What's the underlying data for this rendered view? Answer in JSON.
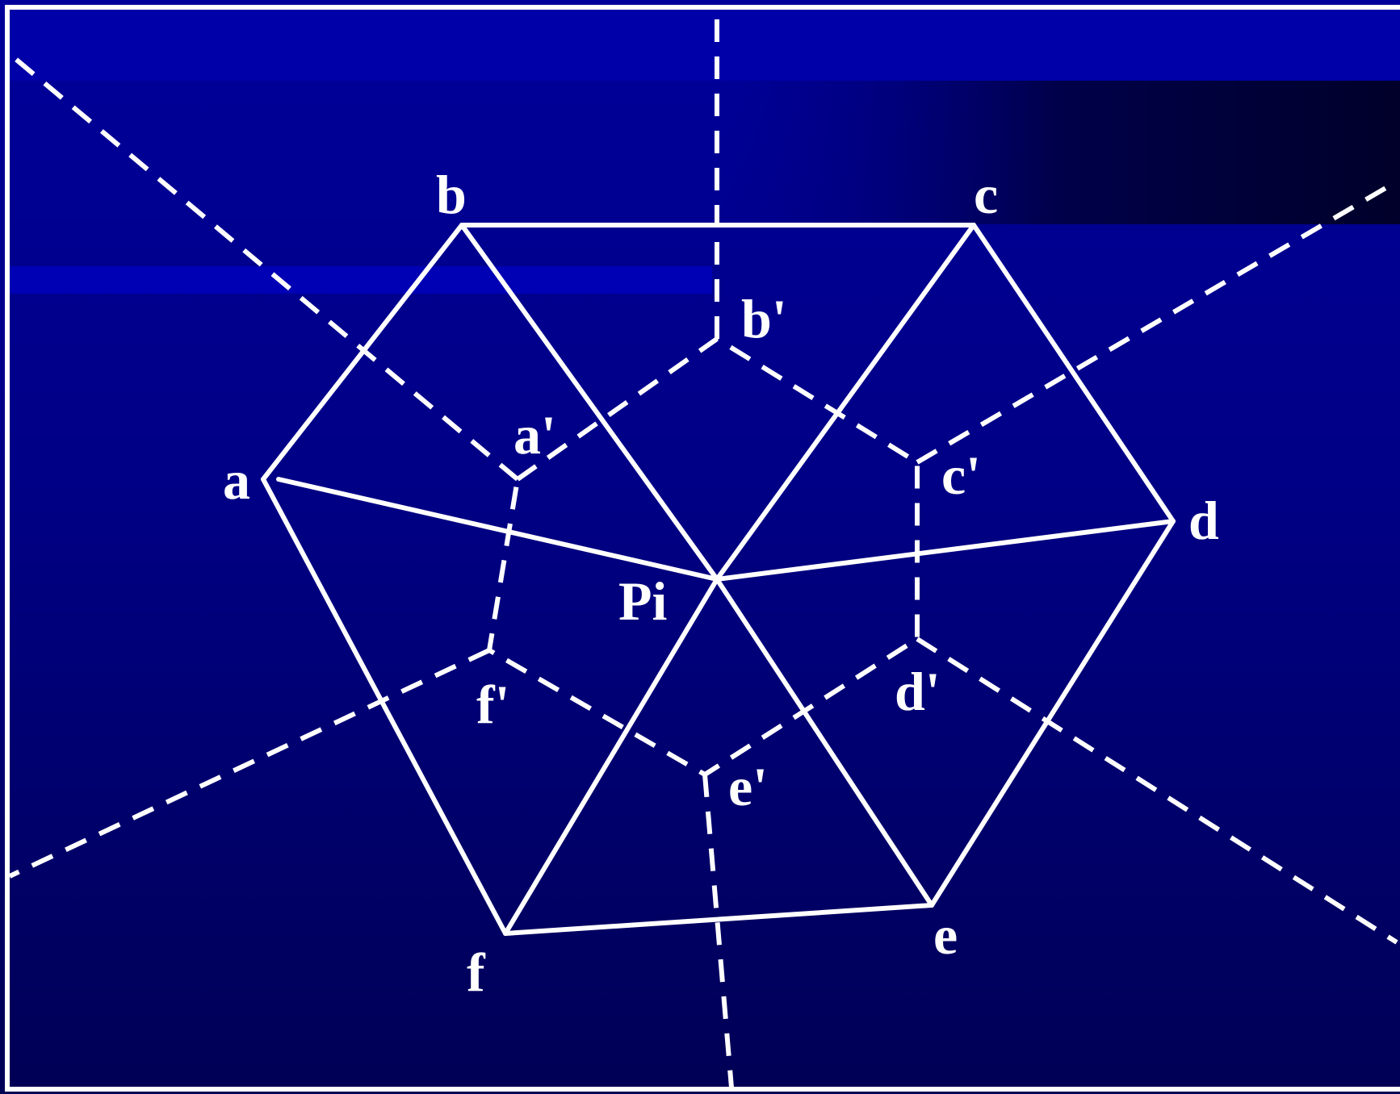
{
  "diagram": {
    "colors": {
      "background_top": "#0000a0",
      "background_bottom": "#000055",
      "band_highlight": "#0000b0",
      "band_dark": "#00002a",
      "line": "#ffffff",
      "text": "#ffffff"
    },
    "labels": {
      "a": "a",
      "b": "b",
      "c": "c",
      "d": "d",
      "e": "e",
      "f": "f",
      "pi": "Pi",
      "a_prime": "a'",
      "b_prime": "b'",
      "c_prime": "c'",
      "d_prime": "d'",
      "e_prime": "e'",
      "f_prime": "f'"
    }
  }
}
